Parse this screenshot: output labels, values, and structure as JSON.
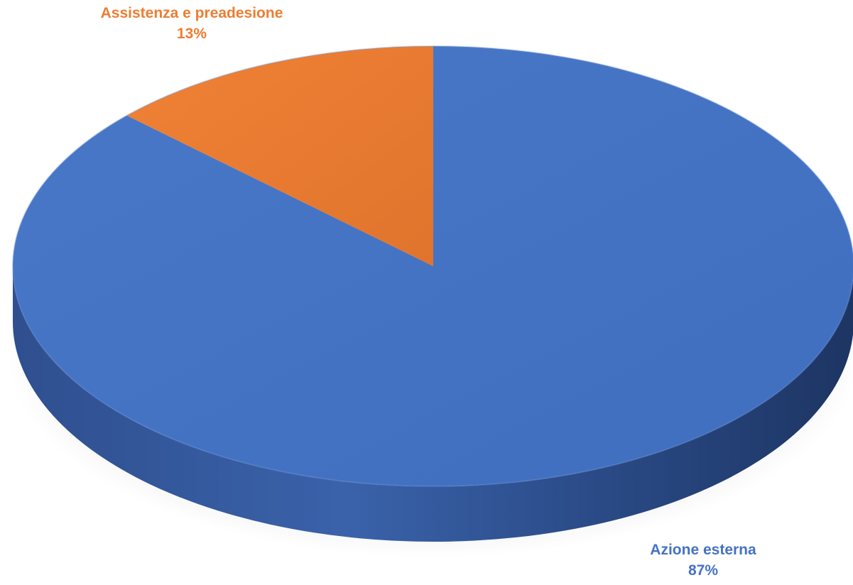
{
  "chart_data": {
    "type": "pie",
    "title": "",
    "slices": [
      {
        "label": "Azione esterna",
        "value": 87,
        "percent_label": "87%",
        "color": "#4472C4"
      },
      {
        "label": "Assistenza e preadesione",
        "value": 13,
        "percent_label": "13%",
        "color": "#ED7D31"
      }
    ],
    "style": "3d"
  }
}
